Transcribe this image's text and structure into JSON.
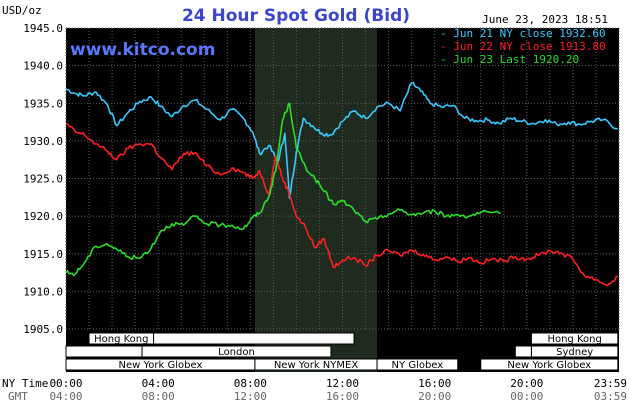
{
  "chart_data": {
    "type": "line",
    "title": "24 Hour Spot Gold (Bid)",
    "source": "www.kitco.com",
    "ylabel": "USD/oz",
    "date": "June 23, 2023 18:51",
    "ylim": [
      1905,
      1945
    ],
    "xlim": [
      0,
      24
    ],
    "y_ticks": [
      "1945.0",
      "1940.0",
      "1935.0",
      "1930.0",
      "1925.0",
      "1920.0",
      "1915.0",
      "1910.0",
      "1905.0"
    ],
    "x_rows": [
      {
        "label": "NY Time",
        "ticks": [
          "00:00",
          "04:00",
          "08:00",
          "12:00",
          "16:00",
          "20:00",
          "23:59"
        ]
      },
      {
        "label": "GMT",
        "ticks": [
          "04:00",
          "08:00",
          "12:00",
          "16:00",
          "20:00",
          "00:00",
          "03:59"
        ]
      }
    ],
    "grid": true,
    "legend_position": "top-right",
    "series": [
      {
        "name": "Jun 21 NY close 1932.60",
        "color": "#3cc8ff",
        "x_end": 23.95,
        "values": [
          [
            0,
            1936.9
          ],
          [
            0.4,
            1936.3
          ],
          [
            0.8,
            1936.0
          ],
          [
            1.3,
            1936.5
          ],
          [
            1.8,
            1934.8
          ],
          [
            2.2,
            1932.0
          ],
          [
            2.7,
            1933.8
          ],
          [
            3.2,
            1935.2
          ],
          [
            3.7,
            1935.8
          ],
          [
            4.1,
            1934.6
          ],
          [
            4.6,
            1933.2
          ],
          [
            5.1,
            1934.7
          ],
          [
            5.6,
            1935.4
          ],
          [
            6.1,
            1934.2
          ],
          [
            6.7,
            1932.8
          ],
          [
            7.2,
            1934.2
          ],
          [
            7.7,
            1933.0
          ],
          [
            8.1,
            1931.2
          ],
          [
            8.4,
            1928.3
          ],
          [
            8.8,
            1929.4
          ],
          [
            9.2,
            1927.2
          ],
          [
            9.5,
            1931.0
          ],
          [
            9.7,
            1922.4
          ],
          [
            10.0,
            1928.6
          ],
          [
            10.3,
            1933.0
          ],
          [
            10.7,
            1932.0
          ],
          [
            11.1,
            1931.0
          ],
          [
            11.5,
            1930.8
          ],
          [
            12.0,
            1932.6
          ],
          [
            12.5,
            1934.0
          ],
          [
            13.0,
            1933.0
          ],
          [
            13.5,
            1934.5
          ],
          [
            14.0,
            1935.0
          ],
          [
            14.5,
            1934.0
          ],
          [
            15.0,
            1937.7
          ],
          [
            15.4,
            1936.6
          ],
          [
            15.8,
            1935.0
          ],
          [
            16.3,
            1934.5
          ],
          [
            16.8,
            1934.7
          ],
          [
            17.3,
            1933.0
          ],
          [
            17.8,
            1932.7
          ],
          [
            18.3,
            1932.8
          ],
          [
            18.8,
            1932.3
          ],
          [
            19.3,
            1933.0
          ],
          [
            19.8,
            1932.6
          ],
          [
            20.3,
            1932.3
          ],
          [
            20.8,
            1932.8
          ],
          [
            21.3,
            1932.2
          ],
          [
            21.8,
            1932.5
          ],
          [
            22.3,
            1932.2
          ],
          [
            22.8,
            1932.6
          ],
          [
            23.3,
            1932.8
          ],
          [
            23.95,
            1931.6
          ]
        ]
      },
      {
        "name": "Jun 22 NY close 1913.80",
        "color": "#ff2020",
        "x_end": 23.95,
        "values": [
          [
            0,
            1932.3
          ],
          [
            0.4,
            1931.2
          ],
          [
            0.8,
            1930.8
          ],
          [
            1.3,
            1929.6
          ],
          [
            1.8,
            1928.6
          ],
          [
            2.2,
            1927.5
          ],
          [
            2.7,
            1929.0
          ],
          [
            3.2,
            1929.6
          ],
          [
            3.7,
            1929.6
          ],
          [
            4.1,
            1927.8
          ],
          [
            4.6,
            1926.2
          ],
          [
            5.1,
            1928.3
          ],
          [
            5.6,
            1928.4
          ],
          [
            6.1,
            1926.7
          ],
          [
            6.7,
            1925.5
          ],
          [
            7.2,
            1926.4
          ],
          [
            7.7,
            1925.8
          ],
          [
            8.1,
            1925.0
          ],
          [
            8.4,
            1926.0
          ],
          [
            8.8,
            1922.9
          ],
          [
            9.1,
            1928.0
          ],
          [
            9.4,
            1925.0
          ],
          [
            9.7,
            1923.0
          ],
          [
            10.0,
            1920.0
          ],
          [
            10.4,
            1918.5
          ],
          [
            10.8,
            1915.8
          ],
          [
            11.2,
            1917.0
          ],
          [
            11.6,
            1913.2
          ],
          [
            12.0,
            1914.2
          ],
          [
            12.5,
            1914.5
          ],
          [
            13.0,
            1913.4
          ],
          [
            13.5,
            1914.8
          ],
          [
            14.0,
            1915.4
          ],
          [
            14.5,
            1914.8
          ],
          [
            15.0,
            1915.5
          ],
          [
            15.5,
            1914.9
          ],
          [
            16.0,
            1914.2
          ],
          [
            16.5,
            1914.6
          ],
          [
            17.0,
            1914.0
          ],
          [
            17.5,
            1914.5
          ],
          [
            18.0,
            1913.8
          ],
          [
            18.5,
            1914.3
          ],
          [
            19.0,
            1914.0
          ],
          [
            19.5,
            1914.6
          ],
          [
            20.0,
            1914.3
          ],
          [
            20.5,
            1914.8
          ],
          [
            21.0,
            1915.4
          ],
          [
            21.5,
            1915.1
          ],
          [
            22.0,
            1914.3
          ],
          [
            22.5,
            1912.1
          ],
          [
            23.0,
            1911.6
          ],
          [
            23.5,
            1910.8
          ],
          [
            23.95,
            1912.0
          ]
        ]
      },
      {
        "name": "Jun 23 Last 1920.20",
        "color": "#2cdc2c",
        "x_end": 18.85,
        "values": [
          [
            0,
            1912.5
          ],
          [
            0.4,
            1912.3
          ],
          [
            0.8,
            1913.8
          ],
          [
            1.3,
            1916.0
          ],
          [
            1.8,
            1916.3
          ],
          [
            2.2,
            1915.6
          ],
          [
            2.7,
            1914.6
          ],
          [
            3.2,
            1914.4
          ],
          [
            3.7,
            1915.8
          ],
          [
            4.1,
            1918.0
          ],
          [
            4.6,
            1919.0
          ],
          [
            5.1,
            1918.8
          ],
          [
            5.6,
            1920.0
          ],
          [
            6.1,
            1919.0
          ],
          [
            6.7,
            1918.8
          ],
          [
            7.2,
            1918.8
          ],
          [
            7.7,
            1918.3
          ],
          [
            8.1,
            1919.8
          ],
          [
            8.4,
            1920.4
          ],
          [
            8.8,
            1922.6
          ],
          [
            9.1,
            1926.0
          ],
          [
            9.4,
            1932.8
          ],
          [
            9.7,
            1935.0
          ],
          [
            10.0,
            1929.0
          ],
          [
            10.4,
            1926.5
          ],
          [
            10.8,
            1925.0
          ],
          [
            11.2,
            1923.3
          ],
          [
            11.6,
            1921.6
          ],
          [
            12.0,
            1922.0
          ],
          [
            12.5,
            1920.8
          ],
          [
            13.0,
            1919.3
          ],
          [
            13.5,
            1919.6
          ],
          [
            14.0,
            1920.3
          ],
          [
            14.5,
            1920.8
          ],
          [
            15.0,
            1920.2
          ],
          [
            15.5,
            1920.4
          ],
          [
            16.0,
            1920.7
          ],
          [
            16.5,
            1920.0
          ],
          [
            17.0,
            1920.2
          ],
          [
            17.5,
            1920.0
          ],
          [
            18.0,
            1920.5
          ],
          [
            18.85,
            1920.3
          ]
        ]
      }
    ],
    "sessions": [
      {
        "row": 0,
        "start": 1.0,
        "end": 3.8,
        "label": "Hong Kong"
      },
      {
        "row": 0,
        "start": 3.8,
        "end": 12.5,
        "label": ""
      },
      {
        "row": 0,
        "start": 20.2,
        "end": 23.95,
        "label": "Hong Kong"
      },
      {
        "row": 1,
        "start": 0,
        "end": 3.3,
        "label": ""
      },
      {
        "row": 1,
        "start": 3.3,
        "end": 11.5,
        "label": "London"
      },
      {
        "row": 1,
        "start": 19.5,
        "end": 20.2,
        "label": ""
      },
      {
        "row": 1,
        "start": 20.2,
        "end": 23.95,
        "label": "Sydney"
      },
      {
        "row": 2,
        "start": 0,
        "end": 8.2,
        "label": "New York Globex"
      },
      {
        "row": 2,
        "start": 8.2,
        "end": 13.5,
        "label": "New York NYMEX"
      },
      {
        "row": 2,
        "start": 13.5,
        "end": 17.0,
        "label": "NY Globex"
      },
      {
        "row": 2,
        "start": 18.0,
        "end": 23.95,
        "label": "New York Globex"
      }
    ]
  }
}
